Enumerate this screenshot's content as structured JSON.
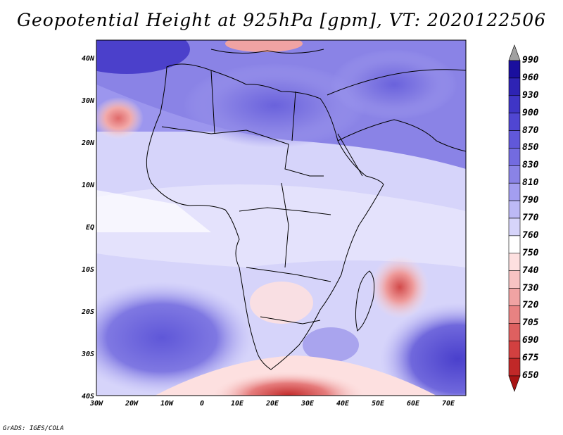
{
  "title": "Geopotential Height at 925hPa [gpm], VT: 2020122506",
  "credit": "GrADS: IGES/COLA",
  "lat_labels": [
    "40N",
    "30N",
    "20N",
    "10N",
    "EQ",
    "10S",
    "20S",
    "30S",
    "40S"
  ],
  "lon_labels": [
    "30W",
    "20W",
    "10W",
    "0",
    "10E",
    "20E",
    "30E",
    "40E",
    "50E",
    "60E",
    "70E"
  ],
  "colorbar": {
    "labels": [
      "990",
      "960",
      "930",
      "900",
      "870",
      "850",
      "830",
      "810",
      "790",
      "770",
      "760",
      "750",
      "740",
      "730",
      "720",
      "705",
      "690",
      "675",
      "650"
    ],
    "colors": [
      "#a0a0a0",
      "#1a0f9e",
      "#2e23b4",
      "#3f35c6",
      "#5046d2",
      "#6158da",
      "#736be0",
      "#8a83e6",
      "#a39ef0",
      "#bdb9f5",
      "#d6d4fa",
      "#ffffff",
      "#fde0e0",
      "#f7c3c3",
      "#f0a3a3",
      "#e88282",
      "#de6060",
      "#d24040",
      "#c02828",
      "#a81414"
    ]
  },
  "map": {
    "region": "Africa",
    "lon_range": [
      -30,
      75
    ],
    "lat_range": [
      -40,
      45
    ],
    "variable": "Geopotential Height",
    "level": "925hPa",
    "units": "gpm",
    "valid_time": "2020122506"
  }
}
